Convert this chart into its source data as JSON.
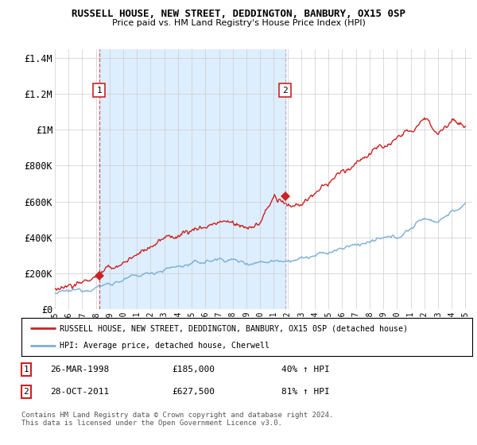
{
  "title": "RUSSELL HOUSE, NEW STREET, DEDDINGTON, BANBURY, OX15 0SP",
  "subtitle": "Price paid vs. HM Land Registry's House Price Index (HPI)",
  "legend_line1": "RUSSELL HOUSE, NEW STREET, DEDDINGTON, BANBURY, OX15 0SP (detached house)",
  "legend_line2": "HPI: Average price, detached house, Cherwell",
  "footer": "Contains HM Land Registry data © Crown copyright and database right 2024.\nThis data is licensed under the Open Government Licence v3.0.",
  "purchase1_date": "26-MAR-1998",
  "purchase1_price": 185000,
  "purchase1_label": "40% ↑ HPI",
  "purchase2_date": "28-OCT-2011",
  "purchase2_price": 627500,
  "purchase2_label": "81% ↑ HPI",
  "ylim": [
    0,
    1450000
  ],
  "yticks": [
    0,
    200000,
    400000,
    600000,
    800000,
    1000000,
    1200000,
    1400000
  ],
  "ytick_labels": [
    "£0",
    "£200K",
    "£400K",
    "£600K",
    "£800K",
    "£1M",
    "£1.2M",
    "£1.4M"
  ],
  "hpi_color": "#7bafd4",
  "sale_color": "#cc2222",
  "marker1_year": 1998.23,
  "marker2_year": 2011.82,
  "shade_color": "#ddeeff",
  "vline1_color": "#dd4444",
  "vline2_color": "#aaaacc",
  "background_color": "#ffffff",
  "grid_color": "#cccccc",
  "hpi_points_t": [
    1995,
    1996,
    1997,
    1998,
    1999,
    2000,
    2001,
    2002,
    2003,
    2004,
    2005,
    2006,
    2007,
    2008,
    2009,
    2010,
    2011,
    2012,
    2013,
    2014,
    2015,
    2016,
    2017,
    2018,
    2019,
    2020,
    2021,
    2022,
    2023,
    2024,
    2025
  ],
  "hpi_points_v": [
    88000,
    97000,
    110000,
    125000,
    143000,
    163000,
    183000,
    204000,
    222000,
    238000,
    252000,
    265000,
    280000,
    275000,
    258000,
    265000,
    272000,
    277000,
    282000,
    295000,
    315000,
    337000,
    360000,
    375000,
    390000,
    400000,
    450000,
    510000,
    490000,
    545000,
    575000
  ],
  "sale_points_t": [
    1995,
    1996,
    1997,
    1998,
    1999,
    2000,
    2001,
    2002,
    2003,
    2004,
    2005,
    2006,
    2007,
    2008,
    2009,
    2010,
    2011,
    2012,
    2013,
    2014,
    2015,
    2016,
    2017,
    2018,
    2019,
    2020,
    2021,
    2022,
    2023,
    2024,
    2025
  ],
  "sale_points_v": [
    120000,
    133000,
    150000,
    185000,
    218000,
    260000,
    305000,
    355000,
    390000,
    415000,
    440000,
    460000,
    490000,
    480000,
    450000,
    480000,
    627500,
    560000,
    590000,
    640000,
    700000,
    760000,
    820000,
    870000,
    910000,
    940000,
    1000000,
    1060000,
    990000,
    1060000,
    1010000
  ]
}
